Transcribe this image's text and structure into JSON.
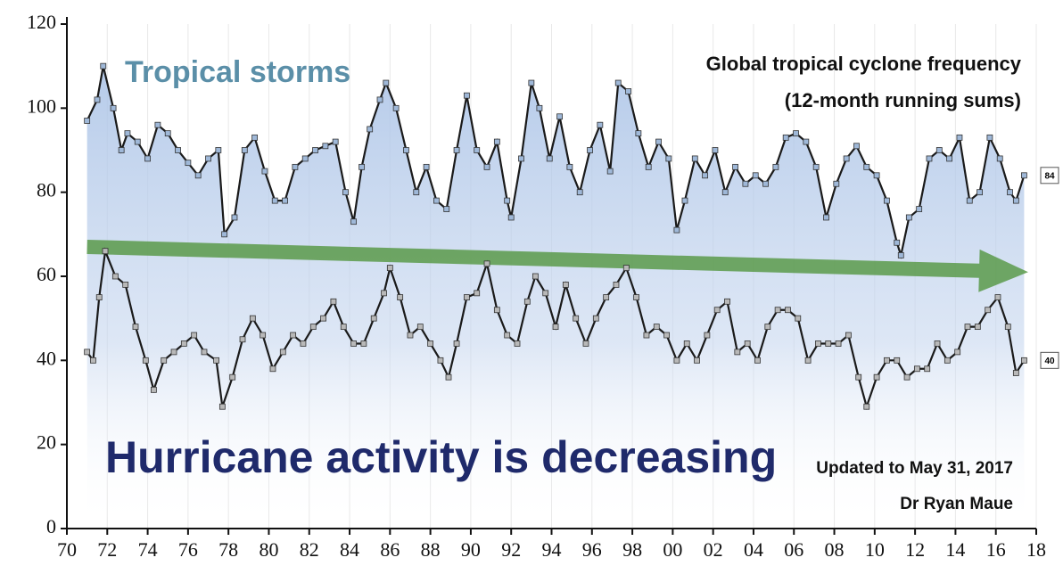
{
  "chart_data": {
    "type": "line",
    "title": "Global tropical cyclone frequency",
    "subtitle": "(12-month running sums)",
    "annotations": [
      "Tropical storms",
      "Hurricane activity is decreasing",
      "Updated to May 31, 2017",
      "Dr Ryan Maue"
    ],
    "xlim": [
      1970,
      2018
    ],
    "xticks": [
      {
        "value": 1970,
        "label": "70"
      },
      {
        "value": 1972,
        "label": "72"
      },
      {
        "value": 1974,
        "label": "74"
      },
      {
        "value": 1976,
        "label": "76"
      },
      {
        "value": 1978,
        "label": "78"
      },
      {
        "value": 1980,
        "label": "80"
      },
      {
        "value": 1982,
        "label": "82"
      },
      {
        "value": 1984,
        "label": "84"
      },
      {
        "value": 1986,
        "label": "86"
      },
      {
        "value": 1988,
        "label": "88"
      },
      {
        "value": 1990,
        "label": "90"
      },
      {
        "value": 1992,
        "label": "92"
      },
      {
        "value": 1994,
        "label": "94"
      },
      {
        "value": 1996,
        "label": "96"
      },
      {
        "value": 1998,
        "label": "98"
      },
      {
        "value": 2000,
        "label": "00"
      },
      {
        "value": 2002,
        "label": "02"
      },
      {
        "value": 2004,
        "label": "04"
      },
      {
        "value": 2006,
        "label": "06"
      },
      {
        "value": 2008,
        "label": "08"
      },
      {
        "value": 2010,
        "label": "10"
      },
      {
        "value": 2012,
        "label": "12"
      },
      {
        "value": 2014,
        "label": "14"
      },
      {
        "value": 2016,
        "label": "16"
      },
      {
        "value": 2018,
        "label": "18"
      }
    ],
    "ylim": [
      0,
      120
    ],
    "yticks": [
      0,
      20,
      40,
      60,
      80,
      100,
      120
    ],
    "trend": {
      "color": "#5a9a4a",
      "x": [
        1971,
        2017.6
      ],
      "values": [
        67,
        61
      ]
    },
    "series": [
      {
        "name": "Tropical storms",
        "color": "#1a1a1a",
        "marker_color": "#9fb8d8",
        "x": [
          1971.0,
          1971.5,
          1971.8,
          1972.3,
          1972.7,
          1973.0,
          1973.5,
          1974.0,
          1974.5,
          1975.0,
          1975.5,
          1976.0,
          1976.5,
          1977.0,
          1977.5,
          1977.8,
          1978.3,
          1978.8,
          1979.3,
          1979.8,
          1980.3,
          1980.8,
          1981.3,
          1981.8,
          1982.3,
          1982.8,
          1983.3,
          1983.8,
          1984.2,
          1984.6,
          1985.0,
          1985.5,
          1985.8,
          1986.3,
          1986.8,
          1987.3,
          1987.8,
          1988.3,
          1988.8,
          1989.3,
          1989.8,
          1990.3,
          1990.8,
          1991.3,
          1991.8,
          1992.0,
          1992.5,
          1993.0,
          1993.4,
          1993.9,
          1994.4,
          1994.9,
          1995.4,
          1995.9,
          1996.4,
          1996.9,
          1997.3,
          1997.8,
          1998.3,
          1998.8,
          1999.3,
          1999.8,
          2000.2,
          2000.6,
          2001.1,
          2001.6,
          2002.1,
          2002.6,
          2003.1,
          2003.6,
          2004.1,
          2004.6,
          2005.1,
          2005.6,
          2006.1,
          2006.6,
          2007.1,
          2007.6,
          2008.1,
          2008.6,
          2009.1,
          2009.6,
          2010.1,
          2010.6,
          2011.1,
          2011.3,
          2011.7,
          2012.2,
          2012.7,
          2013.2,
          2013.7,
          2014.2,
          2014.7,
          2015.2,
          2015.7,
          2016.2,
          2016.7,
          2017.0,
          2017.4
        ],
        "values": [
          97,
          102,
          110,
          100,
          90,
          94,
          92,
          88,
          96,
          94,
          90,
          87,
          84,
          88,
          90,
          70,
          74,
          90,
          93,
          85,
          78,
          78,
          86,
          88,
          90,
          91,
          92,
          80,
          73,
          86,
          95,
          102,
          106,
          100,
          90,
          80,
          86,
          78,
          76,
          90,
          103,
          90,
          86,
          92,
          78,
          74,
          88,
          106,
          100,
          88,
          98,
          86,
          80,
          90,
          96,
          85,
          106,
          104,
          94,
          86,
          92,
          88,
          71,
          78,
          88,
          84,
          90,
          80,
          86,
          82,
          84,
          82,
          86,
          93,
          94,
          92,
          86,
          74,
          82,
          88,
          91,
          86,
          84,
          78,
          68,
          65,
          74,
          76,
          88,
          90,
          88,
          93,
          78,
          80,
          93,
          88,
          80,
          78,
          84
        ]
      },
      {
        "name": "Hurricanes",
        "color": "#1a1a1a",
        "marker_color": "#b8b8b8",
        "x": [
          1971.0,
          1971.3,
          1971.6,
          1971.9,
          1972.4,
          1972.9,
          1973.4,
          1973.9,
          1974.3,
          1974.8,
          1975.3,
          1975.8,
          1976.3,
          1976.8,
          1977.4,
          1977.7,
          1978.2,
          1978.7,
          1979.2,
          1979.7,
          1980.2,
          1980.7,
          1981.2,
          1981.7,
          1982.2,
          1982.7,
          1983.2,
          1983.7,
          1984.2,
          1984.7,
          1985.2,
          1985.7,
          1986.0,
          1986.5,
          1987.0,
          1987.5,
          1988.0,
          1988.5,
          1988.9,
          1989.3,
          1989.8,
          1990.3,
          1990.8,
          1991.3,
          1991.8,
          1992.3,
          1992.8,
          1993.2,
          1993.7,
          1994.2,
          1994.7,
          1995.2,
          1995.7,
          1996.2,
          1996.7,
          1997.2,
          1997.7,
          1998.2,
          1998.7,
          1999.2,
          1999.7,
          2000.2,
          2000.7,
          2001.2,
          2001.7,
          2002.2,
          2002.7,
          2003.2,
          2003.7,
          2004.2,
          2004.7,
          2005.2,
          2005.7,
          2006.2,
          2006.7,
          2007.2,
          2007.7,
          2008.2,
          2008.7,
          2009.2,
          2009.6,
          2010.1,
          2010.6,
          2011.1,
          2011.6,
          2012.1,
          2012.6,
          2013.1,
          2013.6,
          2014.1,
          2014.6,
          2015.1,
          2015.6,
          2016.1,
          2016.6,
          2017.0,
          2017.4
        ],
        "values": [
          42,
          40,
          55,
          66,
          60,
          58,
          48,
          40,
          33,
          40,
          42,
          44,
          46,
          42,
          40,
          29,
          36,
          45,
          50,
          46,
          38,
          42,
          46,
          44,
          48,
          50,
          54,
          48,
          44,
          44,
          50,
          56,
          62,
          55,
          46,
          48,
          44,
          40,
          36,
          44,
          55,
          56,
          63,
          52,
          46,
          44,
          54,
          60,
          56,
          48,
          58,
          50,
          44,
          50,
          55,
          58,
          62,
          55,
          46,
          48,
          46,
          40,
          44,
          40,
          46,
          52,
          54,
          42,
          44,
          40,
          48,
          52,
          52,
          50,
          40,
          44,
          44,
          44,
          46,
          36,
          29,
          36,
          40,
          40,
          36,
          38,
          38,
          44,
          40,
          42,
          48,
          48,
          52,
          55,
          48,
          37,
          40
        ]
      }
    ]
  }
}
